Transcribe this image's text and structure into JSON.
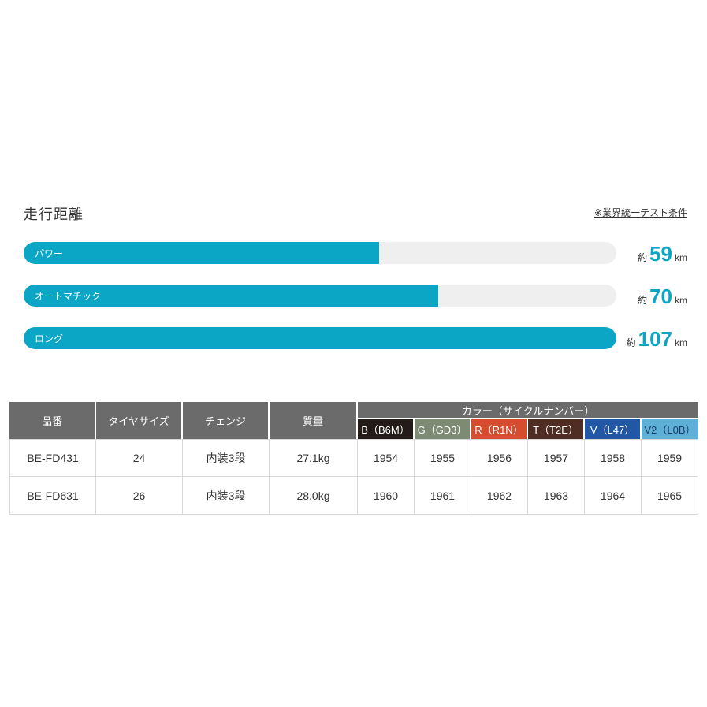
{
  "colors": {
    "accent_teal": "#0ba5c6",
    "bar_track_gray": "#efefef",
    "table_header_gray": "#6b6b6b",
    "text_dark": "#333333"
  },
  "section": {
    "title": "走行距離",
    "note": "※業界統一テスト条件"
  },
  "bars": [
    {
      "label": "パワー",
      "prefix": "約",
      "value": "59",
      "unit": "km",
      "percent": 60
    },
    {
      "label": "オートマチック",
      "prefix": "約",
      "value": "70",
      "unit": "km",
      "percent": 70
    },
    {
      "label": "ロング",
      "prefix": "約",
      "value": "107",
      "unit": "km",
      "percent": 100
    }
  ],
  "table": {
    "spec_headers": [
      "品番",
      "タイヤサイズ",
      "チェンジ",
      "質量"
    ],
    "color_group_header": "カラー（サイクルナンバー）",
    "color_columns": [
      {
        "label": "B（B6M）",
        "bg": "#221b18",
        "fg": "#ffffff"
      },
      {
        "label": "G（GD3）",
        "bg": "#7d8a74",
        "fg": "#ffffff"
      },
      {
        "label": "R（R1N）",
        "bg": "#d54c2e",
        "fg": "#ffffff"
      },
      {
        "label": "T（T2E）",
        "bg": "#4f2d25",
        "fg": "#ffffff"
      },
      {
        "label": "V（L47）",
        "bg": "#2157a4",
        "fg": "#ffffff"
      },
      {
        "label": "V2（L0B）",
        "bg": "#5fb0d8",
        "fg": "#1d3c63"
      }
    ],
    "rows": [
      {
        "cells": [
          "BE-FD431",
          "24",
          "内装3段",
          "27.1kg",
          "1954",
          "1955",
          "1956",
          "1957",
          "1958",
          "1959"
        ]
      },
      {
        "cells": [
          "BE-FD631",
          "26",
          "内装3段",
          "28.0kg",
          "1960",
          "1961",
          "1962",
          "1963",
          "1964",
          "1965"
        ]
      }
    ]
  },
  "chart_data": [
    {
      "type": "bar",
      "orientation": "horizontal",
      "title": "走行距離",
      "annotation": "※業界統一テスト条件",
      "categories": [
        "パワー",
        "オートマチック",
        "ロング"
      ],
      "values": [
        59,
        70,
        107
      ],
      "value_prefix": "約",
      "unit": "km",
      "xlim": [
        0,
        107
      ],
      "bar_color": "#0ba5c6",
      "grid": false,
      "legend": false
    },
    {
      "type": "table",
      "columns": [
        "品番",
        "タイヤサイズ",
        "チェンジ",
        "質量",
        "B（B6M）",
        "G（GD3）",
        "R（R1N）",
        "T（T2E）",
        "V（L47）",
        "V2（L0B）"
      ],
      "column_group": {
        "label": "カラー（サイクルナンバー）",
        "spans": [
          "B（B6M）",
          "G（GD3）",
          "R（R1N）",
          "T（T2E）",
          "V（L47）",
          "V2（L0B）"
        ]
      },
      "rows": [
        [
          "BE-FD431",
          "24",
          "内装3段",
          "27.1kg",
          "1954",
          "1955",
          "1956",
          "1957",
          "1958",
          "1959"
        ],
        [
          "BE-FD631",
          "26",
          "内装3段",
          "28.0kg",
          "1960",
          "1961",
          "1962",
          "1963",
          "1964",
          "1965"
        ]
      ]
    }
  ]
}
